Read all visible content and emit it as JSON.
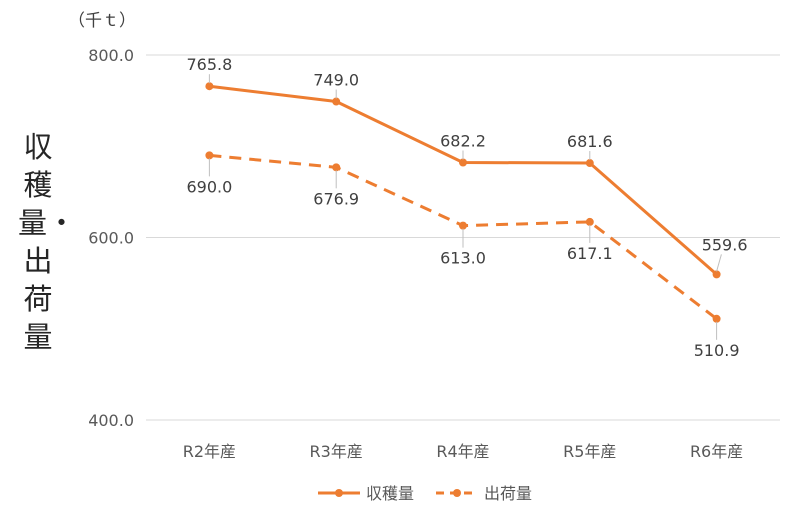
{
  "unit_label": "（千ｔ）",
  "y_axis_title": "収穫量・出荷量",
  "chart_data": {
    "type": "line",
    "categories": [
      "R2年産",
      "R3年産",
      "R4年産",
      "R5年産",
      "R6年産"
    ],
    "series": [
      {
        "name": "収穫量",
        "values": [
          765.8,
          749.0,
          682.2,
          681.6,
          559.6
        ],
        "labels": [
          "765.8",
          "749.0",
          "682.2",
          "681.6",
          "559.6"
        ],
        "color": "#ED7D31",
        "dash": "solid"
      },
      {
        "name": "出荷量",
        "values": [
          690.0,
          676.9,
          613.0,
          617.1,
          510.9
        ],
        "labels": [
          "690.0",
          "676.9",
          "613.0",
          "617.1",
          "510.9"
        ],
        "color": "#ED7D31",
        "dash": "dashed"
      }
    ],
    "yticks": [
      "400.0",
      "600.0",
      "800.0"
    ],
    "ylim": [
      400,
      800
    ],
    "grid": true,
    "legend": "bottom"
  }
}
